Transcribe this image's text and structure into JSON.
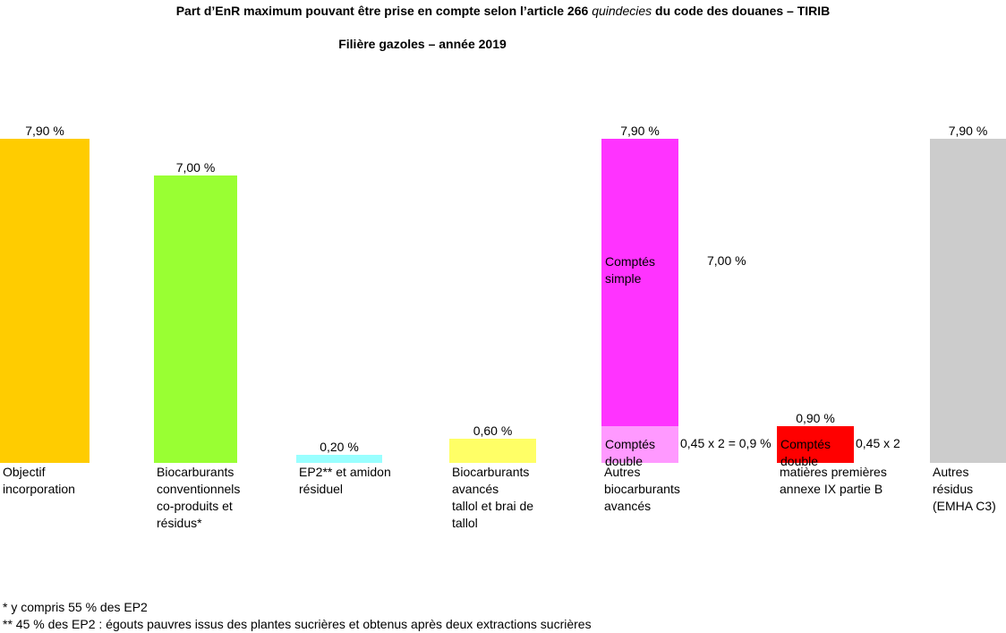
{
  "chart_data": {
    "type": "bar",
    "title": "Part d’EnR maximum pouvant être prise en compte selon l’article 266",
    "title_italic": "quindecies",
    "title_end": "du code des douanes – TIRIB",
    "subtitle": "Filière gazoles – année 2019",
    "ylim": [
      0,
      7.9
    ],
    "grid": false,
    "bars": [
      {
        "category": "Objectif\nincorporation",
        "value": 7.9,
        "label": "7,90 %",
        "color": "#ffcc00"
      },
      {
        "category": "Biocarburants\nconventionnels\nco-produits et\nrésidus*",
        "value": 7.0,
        "label": "7,00 %",
        "color": "#99ff33"
      },
      {
        "category": "EP2** et amidon\nrésiduel",
        "value": 0.2,
        "label": "0,20 %",
        "color": "#99ffff"
      },
      {
        "category": "Biocarburants\navancés\ntallol et brai de\ntallol",
        "value": 0.6,
        "label": "0,60 %",
        "color": "#ffff66"
      },
      {
        "category": "Autres\nbiocarburants\navancés",
        "value": 7.9,
        "label": "7,90 %",
        "segments": [
          {
            "name": "Comptés\ndouble",
            "value": 0.9,
            "color": "#ff99ff",
            "annotation": "0,45 x 2 = 0,9 %"
          },
          {
            "name": "Comptés\nsimple",
            "value": 7.0,
            "color": "#ff33ff",
            "annotation": "7,00 %"
          }
        ]
      },
      {
        "category": "matières premières\nannexe IX partie B",
        "value": 0.9,
        "label": "0,90 %",
        "segments": [
          {
            "name": "Comptés\ndouble",
            "value": 0.9,
            "color": "#ff0000",
            "annotation": "0,45 x 2"
          }
        ]
      },
      {
        "category": "Autres\nrésidus\n(EMHA C3)",
        "value": 7.9,
        "label": "7,90 %",
        "color": "#cccccc"
      }
    ]
  },
  "footnotes": [
    "* y compris 55 % des EP2",
    "** 45 % des EP2 : égouts pauvres issus des plantes sucrières et obtenus après deux extractions sucrières"
  ]
}
